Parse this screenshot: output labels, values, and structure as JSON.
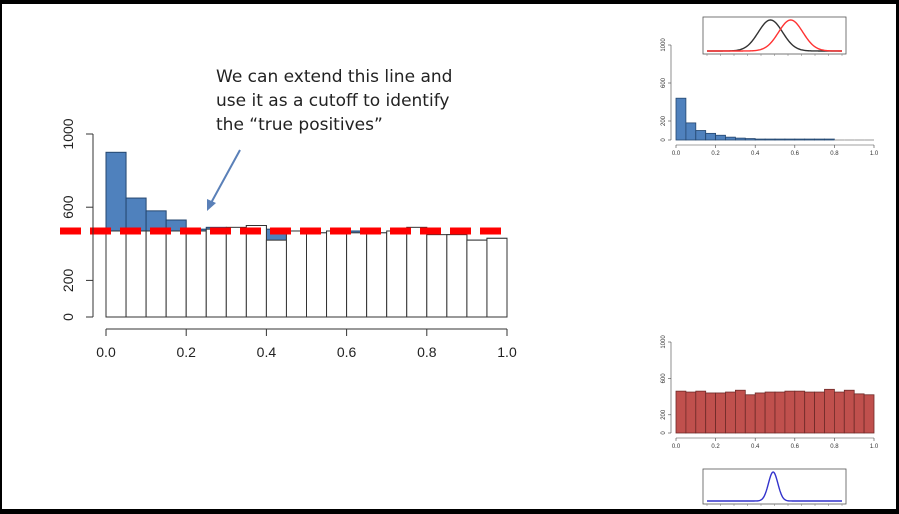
{
  "annotation": {
    "lines": [
      "We can extend this line and",
      "use it as a cutoff to identify",
      "the “true positives”"
    ]
  },
  "colors": {
    "blue_fill": "#4f81bd",
    "blue_stroke": "#24466f",
    "red_fill": "#c0504d",
    "red_line": "#ff0000",
    "blue_curve": "#3333cc",
    "black_curve": "#333333"
  },
  "chart_data": [
    {
      "id": "main",
      "type": "bar",
      "bin_edges": [
        0.0,
        0.05,
        0.1,
        0.15,
        0.2,
        0.25,
        0.3,
        0.35,
        0.4,
        0.45,
        0.5,
        0.55,
        0.6,
        0.65,
        0.7,
        0.75,
        0.8,
        0.85,
        0.9,
        0.95,
        1.0
      ],
      "series": [
        {
          "values": [
            900,
            650,
            580,
            530,
            480,
            490,
            480,
            500,
            480,
            470,
            460,
            470,
            470,
            460,
            460,
            480,
            430,
            450,
            420,
            430
          ]
        },
        {
          "values": [
            470,
            470,
            470,
            470,
            470,
            480,
            490,
            500,
            420,
            470,
            460,
            470,
            460,
            460,
            470,
            490,
            450,
            450,
            420,
            430
          ]
        }
      ],
      "cutoff": 470,
      "xlim": [
        0,
        1
      ],
      "ylim": [
        0,
        1000
      ],
      "xticks": [
        "0.0",
        "0.2",
        "0.4",
        "0.6",
        "0.8",
        "1.0"
      ],
      "yticks": [
        "0",
        "200",
        "600",
        "1000"
      ],
      "ytick_values": [
        0,
        200,
        600,
        1000
      ],
      "xtick_values": [
        0,
        0.2,
        0.4,
        0.6,
        0.8,
        1.0
      ]
    },
    {
      "id": "thumb-top-hist",
      "type": "bar",
      "bin_edges": [
        0.0,
        0.05,
        0.1,
        0.15,
        0.2,
        0.25,
        0.3,
        0.35,
        0.4,
        0.45,
        0.5,
        0.55,
        0.6,
        0.65,
        0.7,
        0.75,
        0.8,
        0.85,
        0.9,
        0.95,
        1.0
      ],
      "values": [
        440,
        180,
        100,
        70,
        50,
        30,
        20,
        15,
        10,
        10,
        10,
        10,
        10,
        10,
        10,
        10,
        0,
        0,
        0,
        0
      ],
      "xlim": [
        0,
        1
      ],
      "ylim": [
        0,
        1000
      ],
      "xticks": [
        "0.0",
        "0.2",
        "0.4",
        "0.6",
        "0.8",
        "1.0"
      ],
      "xtick_values": [
        0,
        0.2,
        0.4,
        0.6,
        0.8,
        1.0
      ],
      "yticks": [
        "0",
        "200",
        "600",
        "1000"
      ],
      "ytick_values": [
        0,
        200,
        600,
        1000
      ]
    },
    {
      "id": "thumb-bottom-hist",
      "type": "bar",
      "bin_edges": [
        0.0,
        0.05,
        0.1,
        0.15,
        0.2,
        0.25,
        0.3,
        0.35,
        0.4,
        0.45,
        0.5,
        0.55,
        0.6,
        0.65,
        0.7,
        0.75,
        0.8,
        0.85,
        0.9,
        0.95,
        1.0
      ],
      "values": [
        460,
        450,
        460,
        440,
        440,
        450,
        470,
        420,
        440,
        450,
        450,
        460,
        460,
        450,
        450,
        480,
        450,
        470,
        430,
        420
      ],
      "xlim": [
        0,
        1
      ],
      "ylim": [
        0,
        1000
      ],
      "xticks": [
        "0.0",
        "0.2",
        "0.4",
        "0.6",
        "0.8",
        "1.0"
      ],
      "xtick_values": [
        0,
        0.2,
        0.4,
        0.6,
        0.8,
        1.0
      ],
      "yticks": [
        "0",
        "200",
        "600",
        "1000"
      ],
      "ytick_values": [
        0,
        200,
        600,
        1000
      ]
    },
    {
      "id": "thumb-top-density",
      "type": "line",
      "series": [
        {
          "color": "#333333",
          "mean": 0.47,
          "sd": 0.09
        },
        {
          "color": "#ff3333",
          "mean": 0.62,
          "sd": 0.09
        }
      ],
      "xlim": [
        0,
        1
      ]
    },
    {
      "id": "thumb-bottom-density",
      "type": "line",
      "series": [
        {
          "color": "#3333cc",
          "mean": 0.49,
          "sd": 0.035
        }
      ],
      "xlim": [
        0,
        1
      ]
    }
  ]
}
